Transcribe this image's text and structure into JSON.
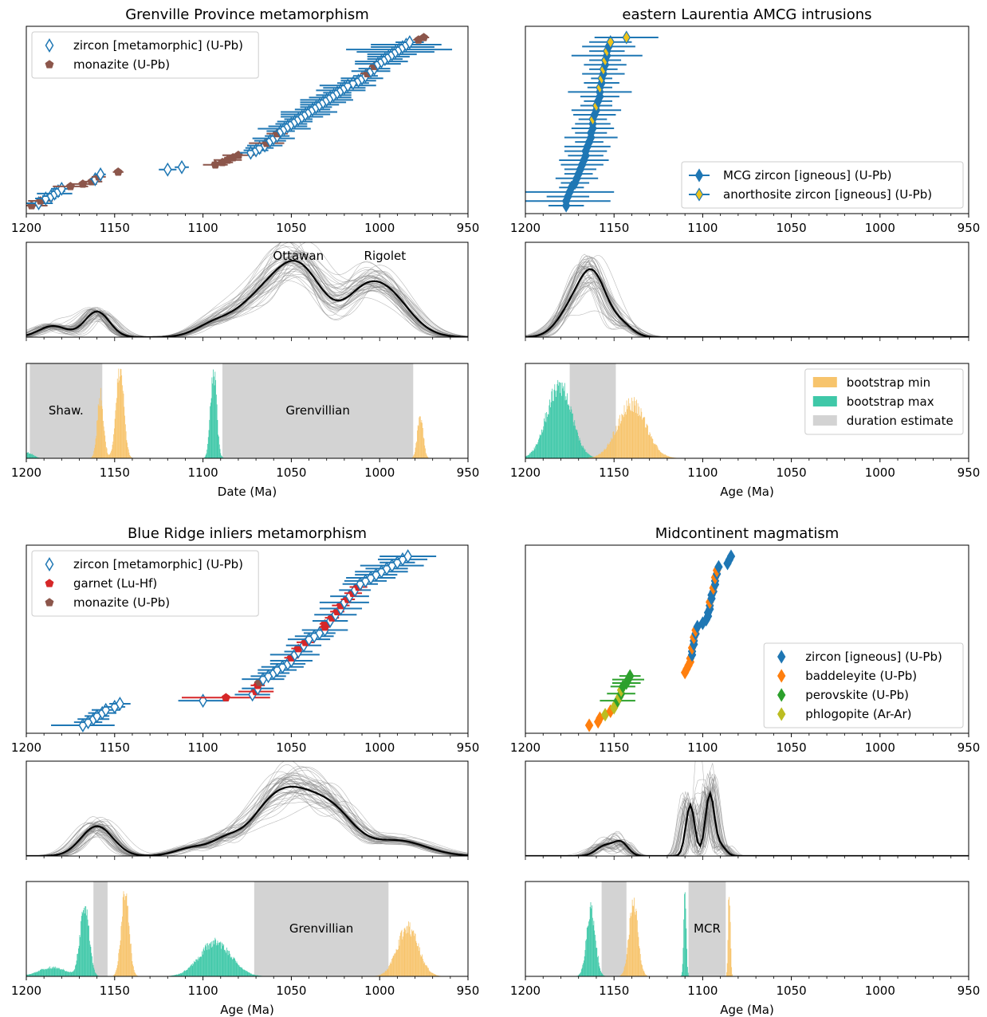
{
  "figure": {
    "bg": "#ffffff",
    "colors": {
      "zircon": "#1f77b4",
      "monazite": "#8c564b",
      "garnet": "#d62728",
      "baddeleyite": "#ff7f0e",
      "perovskite": "#2ca02c",
      "phlogopite": "#bcbd22",
      "anorthosite_fill": "#f0c419",
      "boot_min": "#f7c46c",
      "boot_max": "#3fc8a8",
      "duration": "#d3d3d3",
      "kde_line": "#000000",
      "kde_samples": "#7f7f7f"
    }
  },
  "chart_data": [
    {
      "type": "scatter",
      "title": "Grenville Province metamorphism",
      "xlabel": "",
      "xlim": [
        1200,
        950
      ],
      "xticks": [
        "1200",
        "1150",
        "1100",
        "1050",
        "1000",
        "950"
      ],
      "legend": {
        "placement": "top-left",
        "entries": [
          {
            "label": "zircon [metamorphic] (U-Pb)",
            "marker": "diamond-open",
            "color": "#1f77b4"
          },
          {
            "label": "monazite (U-Pb)",
            "marker": "pentagon",
            "color": "#8c564b"
          }
        ]
      },
      "series": [
        {
          "mineral": "zircon",
          "ages": [
            1193,
            1189,
            1186,
            1184,
            1182,
            1180,
            1161,
            1158,
            1120,
            1112,
            1073,
            1070,
            1068,
            1065,
            1062,
            1060,
            1058,
            1056,
            1054,
            1052,
            1050,
            1048,
            1046,
            1044,
            1042,
            1040,
            1038,
            1036,
            1034,
            1032,
            1030,
            1028,
            1026,
            1024,
            1022,
            1020,
            1018,
            1015,
            1012,
            1010,
            1008,
            1005,
            1003,
            1001,
            999,
            997,
            995,
            993,
            991,
            989,
            987,
            985,
            983
          ],
          "errors": [
            8,
            6,
            5,
            10,
            4,
            6,
            3,
            3,
            5,
            4,
            6,
            7,
            8,
            10,
            9,
            12,
            7,
            8,
            15,
            11,
            9,
            10,
            8,
            12,
            14,
            16,
            10,
            9,
            11,
            13,
            15,
            12,
            10,
            8,
            14,
            12,
            16,
            9,
            10,
            12,
            7,
            11,
            9,
            13,
            15,
            10,
            12,
            14,
            22,
            30,
            18,
            20,
            8
          ]
        },
        {
          "mineral": "monazite",
          "ages": [
            1197,
            1192,
            1175,
            1168,
            1163,
            1159,
            1148,
            1093,
            1089,
            1086,
            1083,
            1080,
            1064,
            1058,
            1007,
            1003,
            978,
            975
          ],
          "errors": [
            9,
            7,
            10,
            8,
            6,
            4,
            3,
            7,
            6,
            8,
            5,
            9,
            10,
            6,
            4,
            3,
            3,
            3
          ]
        }
      ]
    },
    {
      "type": "scatter",
      "title": "eastern Laurentia AMCG intrusions",
      "xlabel": "",
      "xlim": [
        1200,
        950
      ],
      "xticks": [
        "1200",
        "1150",
        "1100",
        "1050",
        "1000",
        "950"
      ],
      "legend": {
        "placement": "lower-right",
        "entries": [
          {
            "label": "MCG zircon [igneous] (U-Pb)",
            "marker": "diamond",
            "color": "#1f77b4"
          },
          {
            "label": "anorthosite zircon [igneous] (U-Pb)",
            "marker": "diamond",
            "color": "#f0c419"
          }
        ]
      },
      "series": [
        {
          "mineral": "MCG zircon",
          "ages": [
            1177,
            1177,
            1176,
            1175,
            1174,
            1172,
            1171,
            1170,
            1169,
            1168,
            1167,
            1166,
            1166,
            1165,
            1164,
            1163,
            1163,
            1162,
            1162,
            1161,
            1160,
            1159,
            1158,
            1158,
            1157,
            1156,
            1155,
            1154,
            1153
          ],
          "errors": [
            10,
            25,
            12,
            25,
            7,
            8,
            12,
            8,
            9,
            12,
            14,
            10,
            12,
            13,
            8,
            15,
            9,
            12,
            10,
            12,
            14,
            8,
            11,
            18,
            10,
            12,
            12,
            20,
            15
          ]
        },
        {
          "mineral": "anorthosite zircon",
          "ages": [
            1162,
            1160,
            1158,
            1157,
            1156,
            1155,
            1154,
            1152,
            1143
          ],
          "errors": [
            8,
            9,
            7,
            6,
            8,
            9,
            10,
            12,
            18
          ]
        }
      ]
    },
    {
      "type": "line",
      "title": "",
      "xlim": [
        1200,
        950
      ],
      "annotations": [
        {
          "text": "Ottawan",
          "x": 1046
        },
        {
          "text": "Rigolet",
          "x": 997
        }
      ],
      "peaks": [
        [
          1185,
          0.13,
          8
        ],
        [
          1160,
          0.3,
          7
        ],
        [
          1095,
          0.12,
          10
        ],
        [
          1070,
          0.35,
          14
        ],
        [
          1046,
          0.8,
          14
        ],
        [
          998,
          0.55,
          14
        ],
        [
          1012,
          0.2,
          10
        ]
      ]
    },
    {
      "type": "line",
      "title": "",
      "xlim": [
        1200,
        950
      ],
      "peaks": [
        [
          1162,
          0.72,
          8
        ],
        [
          1175,
          0.25,
          8
        ],
        [
          1145,
          0.12,
          6
        ]
      ]
    },
    {
      "type": "bar",
      "title": "",
      "xlabel": "Date (Ma)",
      "xlim": [
        1200,
        950
      ],
      "xticks": [
        "1200",
        "1150",
        "1100",
        "1050",
        "1000",
        "950"
      ],
      "durations": [
        {
          "from": 1198,
          "to": 1157,
          "label": "Shaw."
        },
        {
          "from": 1089,
          "to": 981,
          "label": "Grenvillian"
        }
      ],
      "boot_min": [
        [
          1158,
          0.7,
          1.8
        ],
        [
          1147,
          1.0,
          2.2
        ],
        [
          977,
          0.48,
          1.6
        ]
      ],
      "boot_max": [
        [
          1199,
          0.06,
          3
        ],
        [
          1094,
          1.0,
          1.7
        ]
      ]
    },
    {
      "type": "bar",
      "title": "",
      "xlabel": "Age (Ma)",
      "xlim": [
        1200,
        950
      ],
      "xticks": [
        "1200",
        "1150",
        "1100",
        "1050",
        "1000",
        "950"
      ],
      "legend": {
        "placement": "top-right",
        "entries": [
          {
            "label": "bootstrap min",
            "color": "#f7c46c"
          },
          {
            "label": "bootstrap max",
            "color": "#3fc8a8"
          },
          {
            "label": "duration estimate",
            "color": "#d3d3d3"
          }
        ]
      },
      "durations": [
        {
          "from": 1175,
          "to": 1149,
          "label": ""
        }
      ],
      "boot_min": [
        [
          1140,
          0.62,
          8
        ]
      ],
      "boot_max": [
        [
          1181,
          0.82,
          7
        ]
      ]
    },
    {
      "type": "scatter",
      "title": "Blue Ridge inliers metamorphism",
      "xlabel": "",
      "xlim": [
        1200,
        950
      ],
      "xticks": [
        "1200",
        "1150",
        "1100",
        "1050",
        "1000",
        "950"
      ],
      "legend": {
        "placement": "top-left",
        "entries": [
          {
            "label": "zircon [metamorphic] (U-Pb)",
            "marker": "diamond-open",
            "color": "#1f77b4"
          },
          {
            "label": "garnet (Lu-Hf)",
            "marker": "pentagon",
            "color": "#d62728"
          },
          {
            "label": "monazite (U-Pb)",
            "marker": "pentagon",
            "color": "#8c564b"
          }
        ]
      },
      "series": [
        {
          "mineral": "zircon",
          "ages": [
            1168,
            1165,
            1162,
            1160,
            1157,
            1155,
            1150,
            1147,
            1100,
            1072,
            1069,
            1066,
            1063,
            1060,
            1058,
            1055,
            1052,
            1050,
            1048,
            1046,
            1043,
            1040,
            1037,
            1034,
            1031,
            1028,
            1025,
            1022,
            1020,
            1017,
            1014,
            1011,
            1008,
            1005,
            1002,
            999,
            996,
            993,
            990,
            987,
            984
          ],
          "errors": [
            18,
            8,
            9,
            7,
            8,
            8,
            6,
            6,
            14,
            10,
            9,
            12,
            10,
            9,
            11,
            12,
            10,
            12,
            14,
            8,
            10,
            12,
            11,
            9,
            13,
            10,
            12,
            12,
            14,
            11,
            9,
            10,
            12,
            14,
            12,
            15,
            12,
            18,
            10,
            14,
            16
          ]
        },
        {
          "mineral": "garnet",
          "ages": [
            1087,
            1070,
            1069,
            1050,
            1046,
            1042,
            1031,
            1031,
            1027,
            1024,
            1022,
            1018,
            1015,
            1012
          ],
          "errors": [
            25,
            10,
            4,
            4,
            4,
            5,
            3,
            3,
            4,
            4,
            5,
            4,
            5,
            5
          ]
        },
        {
          "mineral": "monazite",
          "ages": [
            1068
          ],
          "errors": [
            3
          ]
        }
      ]
    },
    {
      "type": "scatter",
      "title": "Midcontinent magmatism",
      "xlabel": "",
      "xlim": [
        1200,
        950
      ],
      "xticks": [
        "1200",
        "1150",
        "1100",
        "1050",
        "1000",
        "950"
      ],
      "legend": {
        "placement": "lower-right",
        "entries": [
          {
            "label": "zircon [igneous] (U-Pb)",
            "marker": "diamond",
            "color": "#1f77b4"
          },
          {
            "label": "baddeleyite (U-Pb)",
            "marker": "diamond",
            "color": "#ff7f0e"
          },
          {
            "label": "perovskite (U-Pb)",
            "marker": "diamond",
            "color": "#2ca02c"
          },
          {
            "label": "phlogopite (Ar-Ar)",
            "marker": "diamond",
            "color": "#bcbd22"
          }
        ]
      },
      "series": [
        {
          "mineral": "zircon",
          "ages": [
            1106,
            1106,
            1105,
            1105,
            1104,
            1103,
            1100,
            1098,
            1097,
            1097,
            1096,
            1096,
            1095,
            1095,
            1094,
            1093,
            1093,
            1092,
            1091,
            1086,
            1085,
            1084
          ],
          "errors": [
            0.5,
            0.5,
            0.5,
            0.5,
            0.5,
            0.5,
            0.5,
            0.5,
            0.5,
            0.5,
            0.5,
            0.5,
            0.5,
            0.5,
            0.5,
            0.5,
            0.5,
            0.5,
            0.5,
            0.5,
            0.5,
            0.5
          ]
        },
        {
          "mineral": "baddeleyite",
          "ages": [
            1164,
            1159,
            1158,
            1152,
            1110,
            1109,
            1108,
            1107,
            1107,
            1106,
            1105,
            1104,
            1096,
            1094,
            1093,
            1092
          ],
          "errors": [
            0.5,
            0.5,
            0.5,
            0.5,
            0.5,
            0.5,
            0.5,
            0.5,
            0.5,
            0.5,
            0.5,
            0.5,
            0.5,
            0.5,
            0.5,
            0.5
          ]
        },
        {
          "mineral": "perovskite",
          "ages": [
            1148,
            1146,
            1145,
            1143,
            1142,
            1141
          ],
          "errors": [
            10,
            8,
            7,
            8,
            9,
            6
          ]
        },
        {
          "mineral": "phlogopite",
          "ages": [
            1155,
            1150,
            1149,
            1147,
            1146
          ],
          "errors": [
            0.5,
            0.5,
            0.5,
            0.5,
            0.5
          ]
        }
      ]
    },
    {
      "type": "line",
      "title": "",
      "xlim": [
        1200,
        950
      ],
      "peaks": [
        [
          1160,
          0.35,
          9
        ],
        [
          1105,
          0.1,
          10
        ],
        [
          1087,
          0.15,
          8
        ],
        [
          1065,
          0.35,
          12
        ],
        [
          1047,
          0.62,
          14
        ],
        [
          1025,
          0.4,
          12
        ],
        [
          990,
          0.18,
          16
        ]
      ]
    },
    {
      "type": "line",
      "title": "",
      "xlim": [
        1200,
        950
      ],
      "peaks": [
        [
          1155,
          0.12,
          5
        ],
        [
          1146,
          0.15,
          4
        ],
        [
          1107,
          0.6,
          2.5
        ],
        [
          1096,
          0.72,
          2.5
        ],
        [
          1090,
          0.12,
          3
        ]
      ]
    },
    {
      "type": "bar",
      "title": "",
      "xlabel": "Age (Ma)",
      "xlim": [
        1200,
        950
      ],
      "xticks": [
        "1200",
        "1150",
        "1100",
        "1050",
        "1000",
        "950"
      ],
      "durations": [
        {
          "from": 1162,
          "to": 1154,
          "label": ""
        },
        {
          "from": 1071,
          "to": 995,
          "label": "Grenvillian"
        }
      ],
      "boot_min": [
        [
          1144,
          1.0,
          2.2
        ],
        [
          984,
          0.55,
          6
        ]
      ],
      "boot_max": [
        [
          1167,
          0.82,
          2.5
        ],
        [
          1093,
          0.38,
          9
        ],
        [
          1185,
          0.1,
          8
        ]
      ]
    },
    {
      "type": "bar",
      "title": "",
      "xlabel": "Age (Ma)",
      "xlim": [
        1200,
        950
      ],
      "xticks": [
        "1200",
        "1150",
        "1100",
        "1050",
        "1000",
        "950"
      ],
      "durations": [
        {
          "from": 1157,
          "to": 1143,
          "label": ""
        },
        {
          "from": 1108,
          "to": 1087,
          "label": "MCR"
        }
      ],
      "boot_min": [
        [
          1139,
          0.85,
          2.5
        ],
        [
          1085,
          1.0,
          0.6
        ]
      ],
      "boot_max": [
        [
          1163,
          0.75,
          2.5
        ],
        [
          1110,
          1.0,
          0.7
        ]
      ]
    }
  ]
}
